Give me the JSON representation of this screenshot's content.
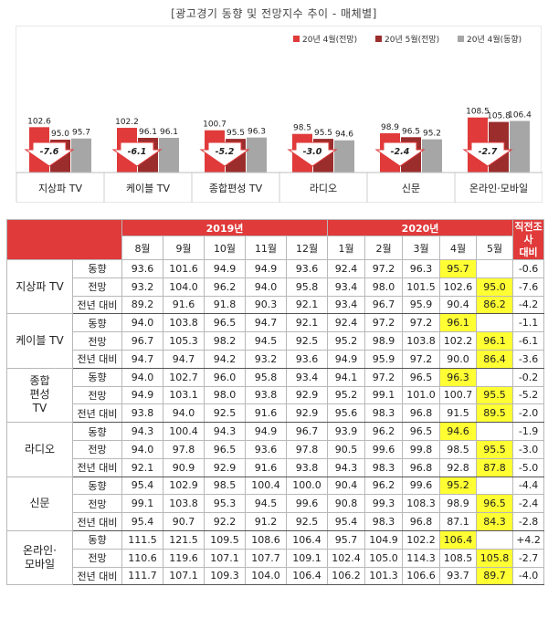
{
  "title": "[광고경기 동향 및 전망지수 추이 - 매체별]",
  "colors": {
    "forecast_apr": "#e03a3a",
    "forecast_may": "#9b2d2d",
    "trend_apr": "#a6a6a6",
    "accent": "#e03a3a",
    "highlight": "#ffff33"
  },
  "chart_data": {
    "type": "bar",
    "categories": [
      "지상파 TV",
      "케이블 TV",
      "종합편성 TV",
      "라디오",
      "신문",
      "온라인·모바일"
    ],
    "series": [
      {
        "name": "20년 4월(전망)",
        "values": [
          102.6,
          102.2,
          100.7,
          98.5,
          98.9,
          108.5
        ]
      },
      {
        "name": "20년 5월(전망)",
        "values": [
          95.0,
          96.1,
          95.5,
          95.5,
          96.5,
          105.8
        ]
      },
      {
        "name": "20년 4월(동향)",
        "values": [
          95.7,
          96.1,
          96.3,
          94.6,
          95.2,
          106.4
        ]
      }
    ],
    "diffs": [
      "-7.6",
      "-6.1",
      "-5.2",
      "-3.0",
      "-2.4",
      "-2.7"
    ],
    "legend_position": "top-right"
  },
  "table": {
    "year_2019": "2019년",
    "year_2020": "2020년",
    "last_header": [
      "직전조사",
      "대비"
    ],
    "months": [
      "8월",
      "9월",
      "10월",
      "11월",
      "12월",
      "1월",
      "2월",
      "3월",
      "4월",
      "5월"
    ],
    "groups": [
      {
        "media": [
          "지상파 TV"
        ],
        "rows": [
          {
            "type": "동향",
            "vals": [
              "93.6",
              "101.6",
              "94.9",
              "94.9",
              "93.6",
              "92.4",
              "97.2",
              "96.3",
              "95.7",
              ""
            ],
            "hl": 8,
            "diff": "-0.6"
          },
          {
            "type": "전망",
            "vals": [
              "93.2",
              "104.0",
              "96.2",
              "94.0",
              "95.8",
              "93.4",
              "98.0",
              "101.5",
              "102.6",
              "95.0"
            ],
            "hl": 9,
            "diff": "-7.6"
          },
          {
            "type": "전년 대비",
            "vals": [
              "89.2",
              "91.6",
              "91.8",
              "90.3",
              "92.1",
              "93.4",
              "96.7",
              "95.9",
              "90.4",
              "86.2"
            ],
            "hl": 9,
            "diff": "-4.2"
          }
        ]
      },
      {
        "media": [
          "케이블 TV"
        ],
        "rows": [
          {
            "type": "동향",
            "vals": [
              "94.0",
              "103.8",
              "96.5",
              "94.7",
              "92.1",
              "92.4",
              "97.2",
              "97.2",
              "96.1",
              ""
            ],
            "hl": 8,
            "diff": "-1.1"
          },
          {
            "type": "전망",
            "vals": [
              "96.7",
              "105.3",
              "98.2",
              "94.5",
              "92.5",
              "95.2",
              "98.9",
              "103.8",
              "102.2",
              "96.1"
            ],
            "hl": 9,
            "diff": "-6.1"
          },
          {
            "type": "전년 대비",
            "vals": [
              "94.7",
              "94.7",
              "94.2",
              "93.2",
              "93.6",
              "94.9",
              "95.9",
              "97.2",
              "90.0",
              "86.4"
            ],
            "hl": 9,
            "diff": "-3.6"
          }
        ]
      },
      {
        "media": [
          "종합",
          "편성",
          "TV"
        ],
        "rows": [
          {
            "type": "동향",
            "vals": [
              "94.0",
              "102.7",
              "96.0",
              "95.8",
              "93.4",
              "94.1",
              "97.2",
              "96.5",
              "96.3",
              ""
            ],
            "hl": 8,
            "diff": "-0.2"
          },
          {
            "type": "전망",
            "vals": [
              "94.9",
              "103.1",
              "98.0",
              "93.8",
              "92.9",
              "95.2",
              "99.1",
              "101.0",
              "100.7",
              "95.5"
            ],
            "hl": 9,
            "diff": "-5.2"
          },
          {
            "type": "전년 대비",
            "vals": [
              "93.8",
              "94.0",
              "92.5",
              "91.6",
              "92.9",
              "95.6",
              "98.3",
              "96.8",
              "91.5",
              "89.5"
            ],
            "hl": 9,
            "diff": "-2.0"
          }
        ]
      },
      {
        "media": [
          "라디오"
        ],
        "rows": [
          {
            "type": "동향",
            "vals": [
              "94.3",
              "100.4",
              "94.3",
              "94.9",
              "96.7",
              "93.9",
              "96.2",
              "96.5",
              "94.6",
              ""
            ],
            "hl": 8,
            "diff": "-1.9"
          },
          {
            "type": "전망",
            "vals": [
              "94.0",
              "97.8",
              "96.5",
              "93.6",
              "97.8",
              "90.5",
              "99.6",
              "99.8",
              "98.5",
              "95.5"
            ],
            "hl": 9,
            "diff": "-3.0"
          },
          {
            "type": "전년 대비",
            "vals": [
              "92.1",
              "90.9",
              "92.9",
              "91.6",
              "93.8",
              "94.3",
              "98.3",
              "96.8",
              "92.8",
              "87.8"
            ],
            "hl": 9,
            "diff": "-5.0"
          }
        ]
      },
      {
        "media": [
          "신문"
        ],
        "rows": [
          {
            "type": "동향",
            "vals": [
              "95.4",
              "102.9",
              "98.5",
              "100.4",
              "100.0",
              "90.4",
              "96.2",
              "99.6",
              "95.2",
              ""
            ],
            "hl": 8,
            "diff": "-4.4"
          },
          {
            "type": "전망",
            "vals": [
              "99.1",
              "103.8",
              "95.3",
              "94.5",
              "99.6",
              "90.8",
              "99.3",
              "108.3",
              "98.9",
              "96.5"
            ],
            "hl": 9,
            "diff": "-2.4"
          },
          {
            "type": "전년 대비",
            "vals": [
              "95.4",
              "90.7",
              "92.2",
              "91.2",
              "92.5",
              "95.4",
              "98.3",
              "96.8",
              "87.1",
              "84.3"
            ],
            "hl": 9,
            "diff": "-2.8"
          }
        ]
      },
      {
        "media": [
          "온라인·",
          "모바일"
        ],
        "rows": [
          {
            "type": "동향",
            "vals": [
              "111.5",
              "121.5",
              "109.5",
              "108.6",
              "106.4",
              "95.7",
              "104.9",
              "102.2",
              "106.4",
              ""
            ],
            "hl": 8,
            "diff": "+4.2"
          },
          {
            "type": "전망",
            "vals": [
              "110.6",
              "119.6",
              "107.1",
              "107.7",
              "109.1",
              "102.4",
              "105.0",
              "114.3",
              "108.5",
              "105.8"
            ],
            "hl": 9,
            "diff": "-2.7"
          },
          {
            "type": "전년 대비",
            "vals": [
              "111.7",
              "107.1",
              "109.3",
              "104.0",
              "106.4",
              "106.2",
              "101.3",
              "106.6",
              "93.7",
              "89.7"
            ],
            "hl": 9,
            "diff": "-4.0"
          }
        ]
      }
    ]
  }
}
